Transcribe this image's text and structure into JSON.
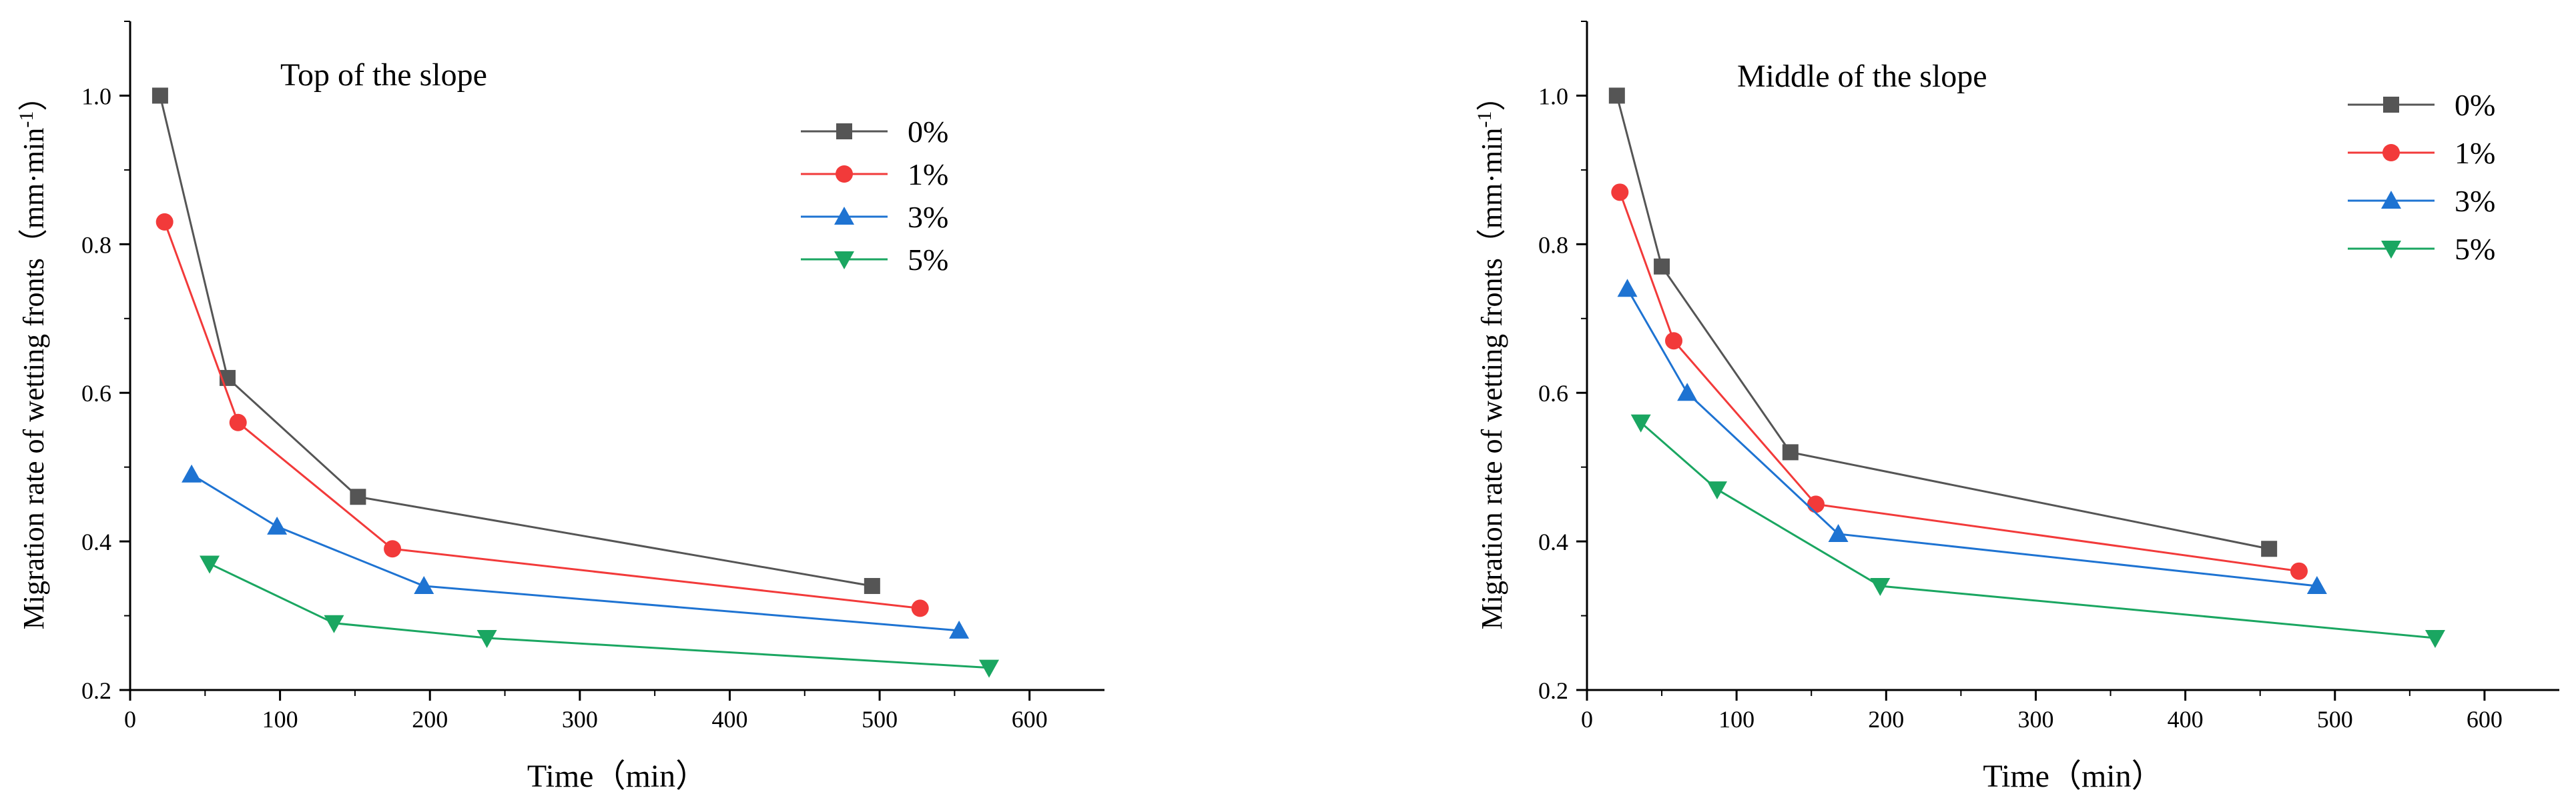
{
  "chart_data": [
    {
      "type": "line",
      "title": "Top of the slope",
      "xlabel": "Time（min）",
      "ylabel_main": "Migration rate of wetting fronts（mm·min",
      "ylabel_sup": "-1",
      "ylabel_close": "）",
      "xlim": [
        0,
        650
      ],
      "ylim": [
        0.2,
        1.1
      ],
      "xticks": [
        0,
        100,
        200,
        300,
        400,
        500,
        600
      ],
      "yticks": [
        0.2,
        0.4,
        0.6,
        0.8,
        1.0
      ],
      "xtick_labels": [
        "0",
        "100",
        "200",
        "300",
        "400",
        "500",
        "600"
      ],
      "ytick_labels": [
        "0.2",
        "0.4",
        "0.6",
        "0.8",
        "1.0"
      ],
      "legend_position": "top-right",
      "series": [
        {
          "name": "0%",
          "color": "#555555",
          "marker": "square",
          "x": [
            20,
            65,
            152,
            495
          ],
          "y": [
            1.0,
            0.62,
            0.46,
            0.34
          ]
        },
        {
          "name": "1%",
          "color": "#f23a3a",
          "marker": "circle",
          "x": [
            23,
            72,
            175,
            527
          ],
          "y": [
            0.83,
            0.56,
            0.39,
            0.31
          ]
        },
        {
          "name": "3%",
          "color": "#1e73d2",
          "marker": "triangle-up",
          "x": [
            41,
            98,
            196,
            553
          ],
          "y": [
            0.49,
            0.42,
            0.34,
            0.28
          ]
        },
        {
          "name": "5%",
          "color": "#1aa661",
          "marker": "triangle-down",
          "x": [
            53,
            136,
            238,
            573
          ],
          "y": [
            0.37,
            0.29,
            0.27,
            0.23
          ]
        }
      ]
    },
    {
      "type": "line",
      "title": "Middle of the slope",
      "xlabel": "Time（min）",
      "ylabel_main": "Migration rate of wetting fronts（mm·min",
      "ylabel_sup": "-1",
      "ylabel_close": "）",
      "xlim": [
        0,
        650
      ],
      "ylim": [
        0.2,
        1.1
      ],
      "xticks": [
        0,
        100,
        200,
        300,
        400,
        500,
        600
      ],
      "yticks": [
        0.2,
        0.4,
        0.6,
        0.8,
        1.0
      ],
      "xtick_labels": [
        "0",
        "100",
        "200",
        "300",
        "400",
        "500",
        "600"
      ],
      "ytick_labels": [
        "0.2",
        "0.4",
        "0.6",
        "0.8",
        "1.0"
      ],
      "legend_position": "top-right",
      "series": [
        {
          "name": "0%",
          "color": "#555555",
          "marker": "square",
          "x": [
            20,
            50,
            136,
            456
          ],
          "y": [
            1.0,
            0.77,
            0.52,
            0.39
          ]
        },
        {
          "name": "1%",
          "color": "#f23a3a",
          "marker": "circle",
          "x": [
            22,
            58,
            153,
            476
          ],
          "y": [
            0.87,
            0.67,
            0.45,
            0.36
          ]
        },
        {
          "name": "3%",
          "color": "#1e73d2",
          "marker": "triangle-up",
          "x": [
            27,
            67,
            168,
            488
          ],
          "y": [
            0.74,
            0.6,
            0.41,
            0.34
          ]
        },
        {
          "name": "5%",
          "color": "#1aa661",
          "marker": "triangle-down",
          "x": [
            36,
            87,
            196,
            567
          ],
          "y": [
            0.56,
            0.47,
            0.34,
            0.27
          ]
        }
      ]
    }
  ]
}
